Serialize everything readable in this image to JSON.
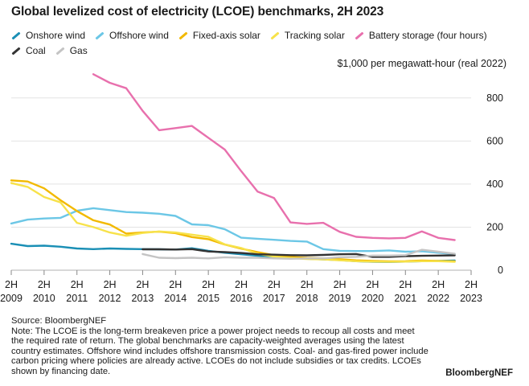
{
  "title": "Global levelized cost of electricity (LCOE) benchmarks, 2H 2023",
  "unit_label": "$1,000 per megawatt-hour (real 2022)",
  "source": "Source: BloombergNEF",
  "note": "Note: The LCOE is the long-term breakeven price a power project needs to recoup all costs and meet the required rate of return. The global benchmarks are capacity-weighted averages using the latest country estimates. Offshore wind includes offshore transmission costs. Coal- and gas-fired power include carbon pricing where policies are already active. LCOEs do not include subsidies or tax credits. LCOEs shown by financing date.",
  "brand": "BloombergNEF",
  "chart_data": {
    "type": "line",
    "title": "Global levelized cost of electricity (LCOE) benchmarks, 2H 2023",
    "ylabel": "$1,000 per megawatt-hour (real 2022)",
    "xlabel": "",
    "ylim": [
      0,
      900
    ],
    "yticks": [
      0,
      200,
      400,
      600,
      800
    ],
    "ytick_labels": [
      "0",
      "200",
      "400",
      "600",
      "800"
    ],
    "x_labels": [
      {
        "top": "2H",
        "bottom": "2009"
      },
      {
        "top": "2H",
        "bottom": "2010"
      },
      {
        "top": "2H",
        "bottom": "2011"
      },
      {
        "top": "2H",
        "bottom": "2012"
      },
      {
        "top": "2H",
        "bottom": "2013"
      },
      {
        "top": "2H",
        "bottom": "2014"
      },
      {
        "top": "2H",
        "bottom": "2015"
      },
      {
        "top": "2H",
        "bottom": "2016"
      },
      {
        "top": "2H",
        "bottom": "2017"
      },
      {
        "top": "2H",
        "bottom": "2018"
      },
      {
        "top": "2H",
        "bottom": "2019"
      },
      {
        "top": "2H",
        "bottom": "2020"
      },
      {
        "top": "2H",
        "bottom": "2021"
      },
      {
        "top": "2H",
        "bottom": "2022"
      },
      {
        "top": "2H",
        "bottom": "2023"
      }
    ],
    "x_range": [
      2009.5,
      2023.5
    ],
    "grid": "horizontal",
    "legend_position": "top",
    "series": [
      {
        "name": "Onshore wind",
        "color": "#1a8fb5",
        "points": [
          [
            2009.5,
            123
          ],
          [
            2010,
            112
          ],
          [
            2010.5,
            114
          ],
          [
            2011,
            109
          ],
          [
            2011.5,
            101
          ],
          [
            2012,
            98
          ],
          [
            2012.5,
            101
          ],
          [
            2013,
            99
          ],
          [
            2013.5,
            98
          ],
          [
            2014,
            97
          ],
          [
            2014.5,
            96
          ],
          [
            2015,
            102
          ],
          [
            2015.5,
            90
          ],
          [
            2016,
            81
          ],
          [
            2016.5,
            74
          ],
          [
            2017,
            67
          ],
          [
            2017.5,
            62
          ],
          [
            2018,
            57
          ],
          [
            2018.5,
            53
          ],
          [
            2019,
            50
          ],
          [
            2019.5,
            47
          ],
          [
            2020,
            42
          ],
          [
            2020.5,
            39
          ],
          [
            2021,
            38
          ],
          [
            2021.5,
            40
          ],
          [
            2022,
            42
          ],
          [
            2022.5,
            43
          ],
          [
            2023,
            45
          ]
        ]
      },
      {
        "name": "Offshore wind",
        "color": "#6cc7e6",
        "points": [
          [
            2009.5,
            217
          ],
          [
            2010,
            235
          ],
          [
            2010.5,
            240
          ],
          [
            2011,
            243
          ],
          [
            2011.5,
            276
          ],
          [
            2012,
            288
          ],
          [
            2012.5,
            279
          ],
          [
            2013,
            270
          ],
          [
            2013.5,
            267
          ],
          [
            2014,
            262
          ],
          [
            2014.5,
            252
          ],
          [
            2015,
            213
          ],
          [
            2015.5,
            209
          ],
          [
            2016,
            190
          ],
          [
            2016.5,
            151
          ],
          [
            2017,
            146
          ],
          [
            2017.5,
            141
          ],
          [
            2018,
            136
          ],
          [
            2018.5,
            133
          ],
          [
            2019,
            98
          ],
          [
            2019.5,
            90
          ],
          [
            2020,
            89
          ],
          [
            2020.5,
            89
          ],
          [
            2021,
            92
          ],
          [
            2021.5,
            86
          ],
          [
            2022,
            88
          ],
          [
            2022.5,
            81
          ],
          [
            2023,
            75
          ]
        ]
      },
      {
        "name": "Fixed-axis solar",
        "color": "#f2b900",
        "points": [
          [
            2009.5,
            417
          ],
          [
            2010,
            412
          ],
          [
            2010.5,
            380
          ],
          [
            2011,
            325
          ],
          [
            2011.5,
            275
          ],
          [
            2012,
            232
          ],
          [
            2012.5,
            212
          ],
          [
            2013,
            170
          ],
          [
            2013.5,
            175
          ],
          [
            2014,
            179
          ],
          [
            2014.5,
            172
          ],
          [
            2015,
            154
          ],
          [
            2015.5,
            144
          ],
          [
            2016,
            119
          ],
          [
            2016.5,
            100
          ],
          [
            2017,
            84
          ],
          [
            2017.5,
            70
          ],
          [
            2018,
            62
          ],
          [
            2018.5,
            57
          ],
          [
            2019,
            55
          ],
          [
            2019.5,
            51
          ],
          [
            2020,
            46
          ],
          [
            2020.5,
            43
          ],
          [
            2021,
            41
          ],
          [
            2021.5,
            42
          ],
          [
            2022,
            45
          ],
          [
            2022.5,
            43
          ],
          [
            2023,
            41
          ]
        ]
      },
      {
        "name": "Tracking solar",
        "color": "#f7e24a",
        "points": [
          [
            2009.5,
            405
          ],
          [
            2010,
            387
          ],
          [
            2010.5,
            340
          ],
          [
            2011,
            315
          ],
          [
            2011.5,
            220
          ],
          [
            2012,
            200
          ],
          [
            2012.5,
            175
          ],
          [
            2013,
            160
          ],
          [
            2013.5,
            173
          ],
          [
            2014,
            180
          ],
          [
            2014.5,
            175
          ],
          [
            2015,
            165
          ],
          [
            2015.5,
            155
          ],
          [
            2016,
            120
          ],
          [
            2016.5,
            103
          ],
          [
            2017,
            76
          ],
          [
            2017.5,
            63
          ],
          [
            2018,
            56
          ],
          [
            2018.5,
            52
          ],
          [
            2019,
            50
          ],
          [
            2019.5,
            46
          ],
          [
            2020,
            42
          ],
          [
            2020.5,
            40
          ],
          [
            2021,
            39
          ],
          [
            2021.5,
            40
          ],
          [
            2022,
            42
          ],
          [
            2022.5,
            42
          ],
          [
            2023,
            39
          ]
        ]
      },
      {
        "name": "Battery storage (four hours)",
        "color": "#e870ad",
        "points": [
          [
            2012,
            910
          ],
          [
            2012.5,
            870
          ],
          [
            2013,
            845
          ],
          [
            2013.5,
            740
          ],
          [
            2014,
            650
          ],
          [
            2014.5,
            660
          ],
          [
            2015,
            670
          ],
          [
            2015.5,
            615
          ],
          [
            2016,
            560
          ],
          [
            2016.5,
            460
          ],
          [
            2017,
            365
          ],
          [
            2017.5,
            335
          ],
          [
            2018,
            222
          ],
          [
            2018.5,
            215
          ],
          [
            2019,
            220
          ],
          [
            2019.5,
            178
          ],
          [
            2020,
            155
          ],
          [
            2020.5,
            150
          ],
          [
            2021,
            148
          ],
          [
            2021.5,
            150
          ],
          [
            2022,
            180
          ],
          [
            2022.5,
            150
          ],
          [
            2023,
            140
          ]
        ]
      },
      {
        "name": "Coal",
        "color": "#333333",
        "points": [
          [
            2013.5,
            97
          ],
          [
            2014,
            97
          ],
          [
            2014.5,
            96
          ],
          [
            2015,
            98
          ],
          [
            2015.5,
            87
          ],
          [
            2016,
            84
          ],
          [
            2016.5,
            80
          ],
          [
            2017,
            74
          ],
          [
            2017.5,
            72
          ],
          [
            2018,
            70
          ],
          [
            2018.5,
            69
          ],
          [
            2019,
            71
          ],
          [
            2019.5,
            74
          ],
          [
            2020,
            75
          ],
          [
            2020.5,
            62
          ],
          [
            2021,
            62
          ],
          [
            2021.5,
            65
          ],
          [
            2022,
            67
          ],
          [
            2022.5,
            68
          ],
          [
            2023,
            69
          ]
        ]
      },
      {
        "name": "Gas",
        "color": "#c4c4c4",
        "points": [
          [
            2013.5,
            75
          ],
          [
            2014,
            58
          ],
          [
            2014.5,
            56
          ],
          [
            2015,
            58
          ],
          [
            2015.5,
            55
          ],
          [
            2016,
            60
          ],
          [
            2016.5,
            58
          ],
          [
            2017,
            58
          ],
          [
            2017.5,
            55
          ],
          [
            2018,
            53
          ],
          [
            2018.5,
            55
          ],
          [
            2019,
            55
          ],
          [
            2019.5,
            60
          ],
          [
            2020,
            62
          ],
          [
            2020.5,
            68
          ],
          [
            2021,
            68
          ],
          [
            2021.5,
            70
          ],
          [
            2022,
            95
          ],
          [
            2022.5,
            86
          ],
          [
            2023,
            76
          ]
        ]
      }
    ]
  }
}
